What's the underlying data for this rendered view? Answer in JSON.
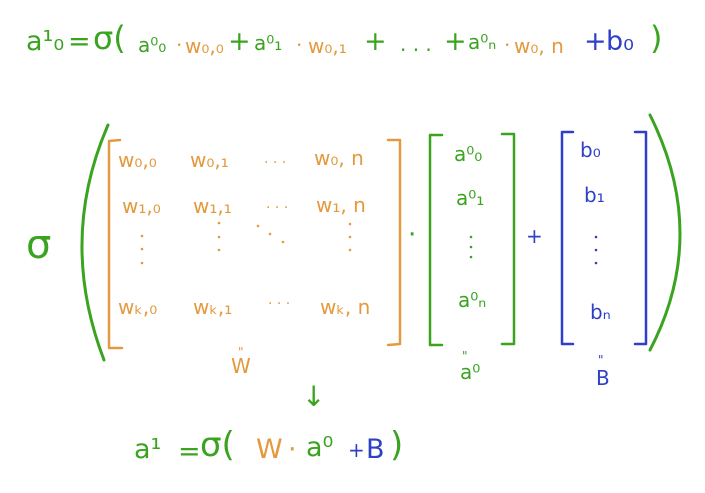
{
  "colors": {
    "green": "#3aa320",
    "orange": "#e39a3e",
    "blue": "#2f40c8"
  },
  "top_equation": {
    "lhs": "a¹₀",
    "equals": "=",
    "sigma": "σ(",
    "term1_a": "a⁰₀",
    "term1_dot": "·",
    "term1_w": "w₀,₀",
    "plus1": "+",
    "term2_a": "a⁰₁",
    "term2_dot": "·",
    "term2_w": "w₀,₁",
    "plus2": "+",
    "ellipsis": ". . .",
    "plus3": "+",
    "term3_a": "a⁰ₙ",
    "term3_dot": "·",
    "term3_w": "w₀, n",
    "plus4": "+",
    "bias": "b₀",
    "close": ")"
  },
  "matrix_expr": {
    "sigma": "σ",
    "weights": {
      "rows": [
        [
          "w₀,₀",
          "w₀,₁",
          "w₀, n"
        ],
        [
          "w₁,₀",
          "w₁,₁",
          "w₁, n"
        ],
        [
          "wₖ,₀",
          "wₖ,₁",
          "wₖ, n"
        ]
      ],
      "dots": "· · ·",
      "label": "W"
    },
    "dot_op": "·",
    "activations": {
      "entries": [
        "a⁰₀",
        "a⁰₁",
        "a⁰ₙ"
      ],
      "label": "a⁰"
    },
    "plus_op": "+",
    "bias": {
      "entries": [
        "b₀",
        "b₁",
        "bₙ"
      ],
      "label": "B"
    },
    "equals_mark": "\""
  },
  "bottom_equation": {
    "arrow": "↓",
    "lhs": "a¹",
    "equals": "=",
    "sigma": "σ(",
    "w": "W",
    "dot": "·",
    "a0": "a⁰",
    "plus": "+",
    "b": "B",
    "close": ")"
  }
}
